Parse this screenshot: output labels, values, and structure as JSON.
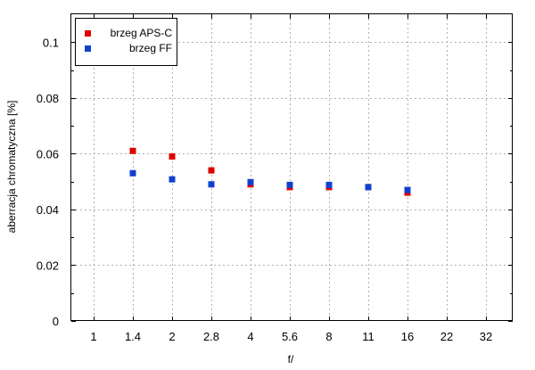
{
  "chart_data": {
    "type": "scatter",
    "title": "",
    "xlabel": "f/",
    "ylabel": "aberracja chromatyczna [%]",
    "categories": [
      "1",
      "1.4",
      "2",
      "2.8",
      "4",
      "5.6",
      "8",
      "11",
      "16",
      "22",
      "32"
    ],
    "ylim": [
      0,
      0.11
    ],
    "yticks": [
      "0",
      "0.02",
      "0.04",
      "0.06",
      "0.08",
      "0.1"
    ],
    "grid": true,
    "legend": "top-left",
    "series": [
      {
        "name": "brzeg APS-C",
        "color": "#e00000",
        "points": [
          {
            "x": "1.4",
            "y": 0.061
          },
          {
            "x": "2",
            "y": 0.059
          },
          {
            "x": "2.8",
            "y": 0.054
          },
          {
            "x": "4",
            "y": 0.049
          },
          {
            "x": "5.6",
            "y": 0.048
          },
          {
            "x": "8",
            "y": 0.048
          },
          {
            "x": "11",
            "y": 0.048
          },
          {
            "x": "16",
            "y": 0.046
          }
        ]
      },
      {
        "name": "brzeg FF",
        "color": "#1040d0",
        "points": [
          {
            "x": "1.4",
            "y": 0.053
          },
          {
            "x": "2",
            "y": 0.0508
          },
          {
            "x": "2.8",
            "y": 0.049
          },
          {
            "x": "4",
            "y": 0.0498
          },
          {
            "x": "5.6",
            "y": 0.0488
          },
          {
            "x": "8",
            "y": 0.0488
          },
          {
            "x": "11",
            "y": 0.048
          },
          {
            "x": "16",
            "y": 0.047
          }
        ]
      }
    ]
  }
}
